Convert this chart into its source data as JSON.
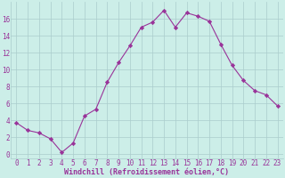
{
  "x": [
    0,
    1,
    2,
    3,
    4,
    5,
    6,
    7,
    8,
    9,
    10,
    11,
    12,
    13,
    14,
    15,
    16,
    17,
    18,
    19,
    20,
    21,
    22,
    23
  ],
  "y": [
    3.7,
    2.8,
    2.5,
    1.8,
    0.2,
    1.3,
    4.5,
    5.3,
    8.5,
    10.8,
    12.8,
    15.0,
    15.6,
    17.0,
    15.0,
    16.7,
    16.3,
    15.7,
    13.0,
    10.5,
    8.7,
    7.5,
    7.0,
    5.7
  ],
  "line_color": "#993399",
  "marker": "D",
  "markersize": 2.2,
  "bg_color": "#cceee8",
  "grid_color": "#aacccc",
  "xlabel": "Windchill (Refroidissement éolien,°C)",
  "xlabel_color": "#993399",
  "tick_color": "#993399",
  "ylim": [
    -0.5,
    18
  ],
  "xlim": [
    -0.5,
    23.5
  ],
  "yticks": [
    0,
    2,
    4,
    6,
    8,
    10,
    12,
    14,
    16
  ],
  "xticks": [
    0,
    1,
    2,
    3,
    4,
    5,
    6,
    7,
    8,
    9,
    10,
    11,
    12,
    13,
    14,
    15,
    16,
    17,
    18,
    19,
    20,
    21,
    22,
    23
  ],
  "tick_fontsize": 5.5,
  "xlabel_fontsize": 6.0,
  "linewidth": 0.8
}
